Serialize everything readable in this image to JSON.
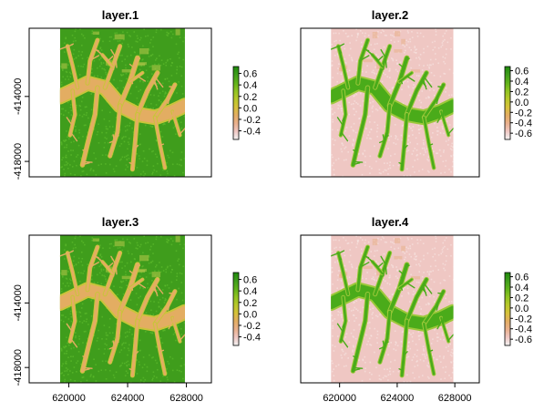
{
  "figure": {
    "background": "#ffffff"
  },
  "chart_data": [
    {
      "type": "heatmap",
      "title": "layer.1",
      "palette": "layer1",
      "xlim": [
        617300,
        629700
      ],
      "ylim": [
        -418950,
        -409800
      ],
      "x_ticks": [],
      "y_ticks": [
        -414000,
        -418000
      ],
      "y_tick_labels": [
        "-414000",
        "-418000"
      ],
      "raster_extent": {
        "x": [
          619400,
          627900
        ],
        "y": [
          -418950,
          -409800
        ]
      },
      "legend": {
        "position": "right",
        "range": [
          -0.55,
          0.72
        ],
        "ticks": [
          0.6,
          0.4,
          0.2,
          0.0,
          -0.2,
          -0.4
        ],
        "tick_labels": [
          "0.6",
          "0.4",
          "0.2",
          "0.0",
          "-0.2",
          "-0.4"
        ]
      }
    },
    {
      "type": "heatmap",
      "title": "layer.2",
      "palette": "layer2",
      "xlim": [
        617300,
        629700
      ],
      "ylim": [
        -418950,
        -409800
      ],
      "x_ticks": [],
      "y_ticks": [],
      "y_tick_labels": [],
      "raster_extent": {
        "x": [
          619400,
          627900
        ],
        "y": [
          -418950,
          -409800
        ]
      },
      "legend": {
        "position": "right",
        "range": [
          -0.72,
          0.68
        ],
        "ticks": [
          0.6,
          0.4,
          0.2,
          0.0,
          -0.2,
          -0.4,
          -0.6
        ],
        "tick_labels": [
          "0.6",
          "0.4",
          "0.2",
          "0.0",
          "-0.2",
          "-0.4",
          "-0.6"
        ]
      }
    },
    {
      "type": "heatmap",
      "title": "layer.3",
      "palette": "layer1",
      "xlim": [
        617300,
        629700
      ],
      "ylim": [
        -418950,
        -409800
      ],
      "x_ticks": [
        620000,
        624000,
        628000
      ],
      "x_tick_labels": [
        "620000",
        "624000",
        "628000"
      ],
      "y_ticks": [
        -414000,
        -418000
      ],
      "y_tick_labels": [
        "-414000",
        "-418000"
      ],
      "raster_extent": {
        "x": [
          619400,
          627900
        ],
        "y": [
          -418950,
          -409800
        ]
      },
      "legend": {
        "position": "right",
        "range": [
          -0.55,
          0.72
        ],
        "ticks": [
          0.6,
          0.4,
          0.2,
          0.0,
          -0.2,
          -0.4
        ],
        "tick_labels": [
          "0.6",
          "0.4",
          "0.2",
          "0.0",
          "-0.2",
          "-0.4"
        ]
      }
    },
    {
      "type": "heatmap",
      "title": "layer.4",
      "palette": "layer2",
      "xlim": [
        617300,
        629700
      ],
      "ylim": [
        -418950,
        -409800
      ],
      "x_ticks": [
        620000,
        624000,
        628000
      ],
      "x_tick_labels": [
        "620000",
        "624000",
        "628000"
      ],
      "y_ticks": [],
      "y_tick_labels": [],
      "raster_extent": {
        "x": [
          619400,
          627900
        ],
        "y": [
          -418950,
          -409800
        ]
      },
      "legend": {
        "position": "right",
        "range": [
          -0.72,
          0.68
        ],
        "ticks": [
          0.6,
          0.4,
          0.2,
          0.0,
          -0.2,
          -0.4,
          -0.6
        ],
        "tick_labels": [
          "0.6",
          "0.4",
          "0.2",
          "0.0",
          "-0.2",
          "-0.4",
          "-0.6"
        ]
      }
    }
  ],
  "palettes": {
    "layer1": {
      "background": "#3f9d1c",
      "texture": "#5dbb2c",
      "channel": "#e3ad62",
      "channel_edge": "#c9c43a",
      "patch": "#b8c84a"
    },
    "layer2": {
      "background": "#efc7c3",
      "texture": "#f6e2df",
      "channel": "#4aab1a",
      "channel_edge": "#9cc83a",
      "patch": "#e8b08a"
    },
    "colorbar": [
      "#f2f2f2",
      "#efc7c3",
      "#e9b08c",
      "#e3ad62",
      "#d6c23a",
      "#b8c82a",
      "#8fc321",
      "#5fb21a",
      "#3f9d1c",
      "#1f8a0c"
    ]
  }
}
